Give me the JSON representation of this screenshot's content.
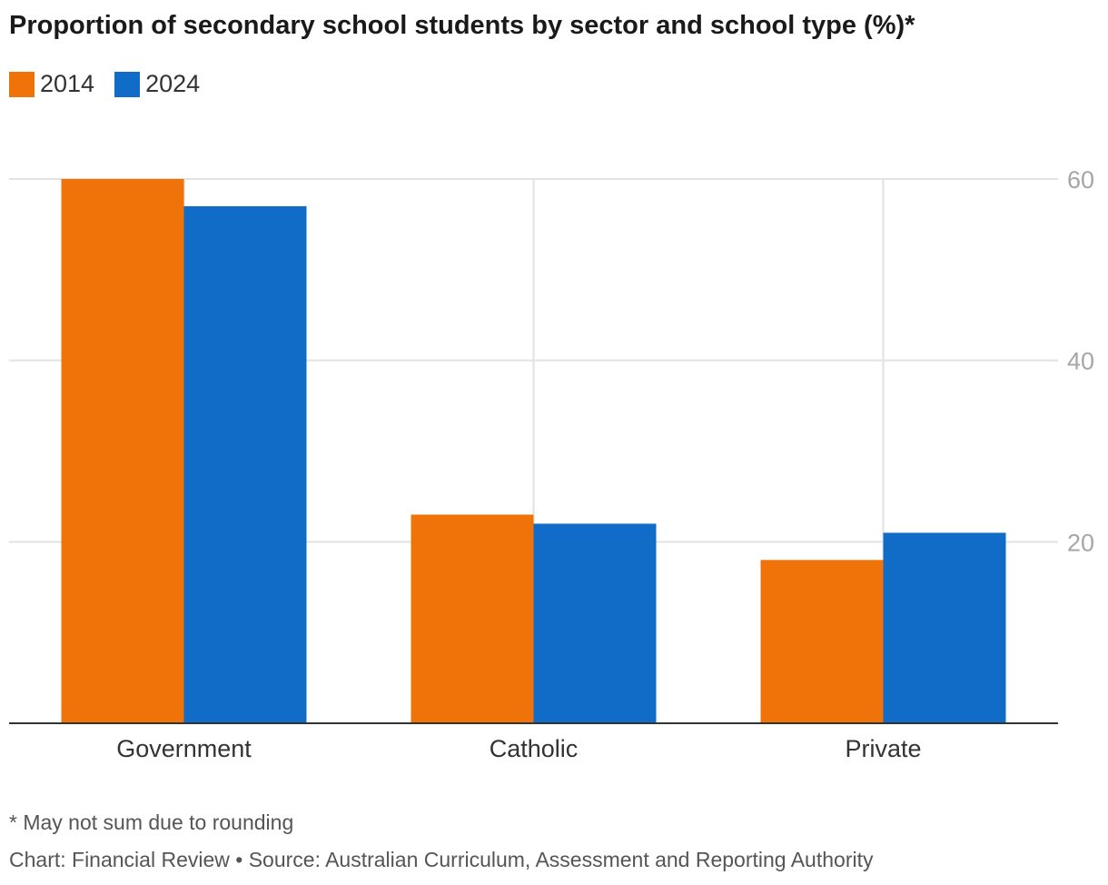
{
  "chart_data": {
    "type": "bar",
    "title": "Proportion of secondary school students by sector and school type (%)*",
    "categories": [
      "Government",
      "Catholic",
      "Private"
    ],
    "series": [
      {
        "name": "2014",
        "color": "#f0730a",
        "values": [
          60,
          23,
          18
        ]
      },
      {
        "name": "2024",
        "color": "#116cc8",
        "values": [
          57,
          22,
          21
        ]
      }
    ],
    "y_ticks": [
      20,
      40,
      60
    ],
    "ylim": [
      0,
      60
    ],
    "xlabel": "",
    "ylabel": "",
    "y_axis_side": "right",
    "grid": true,
    "legend_position": "top-left"
  },
  "footer": {
    "note": "* May not sum due to rounding",
    "credit": "Chart: Financial Review • Source: Australian Curriculum, Assessment and Reporting Authority"
  }
}
